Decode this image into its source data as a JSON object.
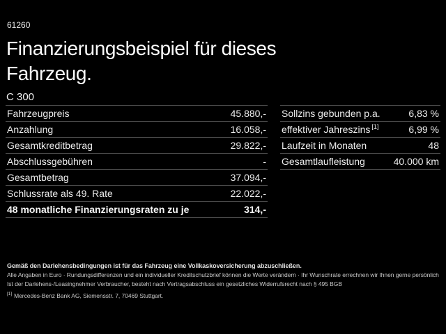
{
  "header": {
    "code": "61260",
    "title": "Finanzierungsbeispiel für dieses Fahrzeug.",
    "model": "C 300"
  },
  "finance_table": {
    "rows": [
      {
        "label": "Fahrzeugpreis",
        "value": "45.880,-"
      },
      {
        "label": "Anzahlung",
        "value": "16.058,-"
      },
      {
        "label": "Gesamtkreditbetrag",
        "value": "29.822,-"
      },
      {
        "label": "Abschlussgebühren",
        "value": "-"
      },
      {
        "label": "Gesamtbetrag",
        "value": "37.094,-"
      },
      {
        "label": "Schlussrate als 49. Rate",
        "value": "22.022,-"
      },
      {
        "label": "48 monatliche Finanzierungsraten zu je",
        "value": "314,-"
      }
    ]
  },
  "conditions_table": {
    "rows": [
      {
        "label": "Sollzins gebunden p.a.",
        "value": "6,83 %"
      },
      {
        "label": "effektiver Jahreszins",
        "sup": "[1]",
        "value": "6,99 %"
      },
      {
        "label": "Laufzeit in Monaten",
        "value": "48"
      },
      {
        "label": "Gesamtlaufleistung",
        "value": "40.000 km"
      }
    ]
  },
  "footnotes": {
    "insurance_note": "Gemäß den Darlehensbedingungen ist für das Fahrzeug eine Vollkaskoversicherung abzuschließen.",
    "general_note": "Alle Angaben in Euro · Rundungsdifferenzen und ein individueller Kreditschutzbrief können die Werte verändern · Ihr Wunschrate errechnen wir Ihnen gerne persönlich",
    "withdrawal_note": "Ist der Darlehens-/Leasingnehmer Verbraucher, besteht nach Vertragsabschluss ein gesetzliches Widerrufsrecht nach § 495 BGB",
    "reference_marker": "[1]",
    "reference_text": "Mercedes-Benz Bank AG, Siemensstr. 7, 70469 Stuttgart."
  },
  "colors": {
    "background": "#000000",
    "text_primary": "#f2f2f2",
    "text_secondary": "#c9c9c9",
    "divider": "#4a4a4a"
  }
}
